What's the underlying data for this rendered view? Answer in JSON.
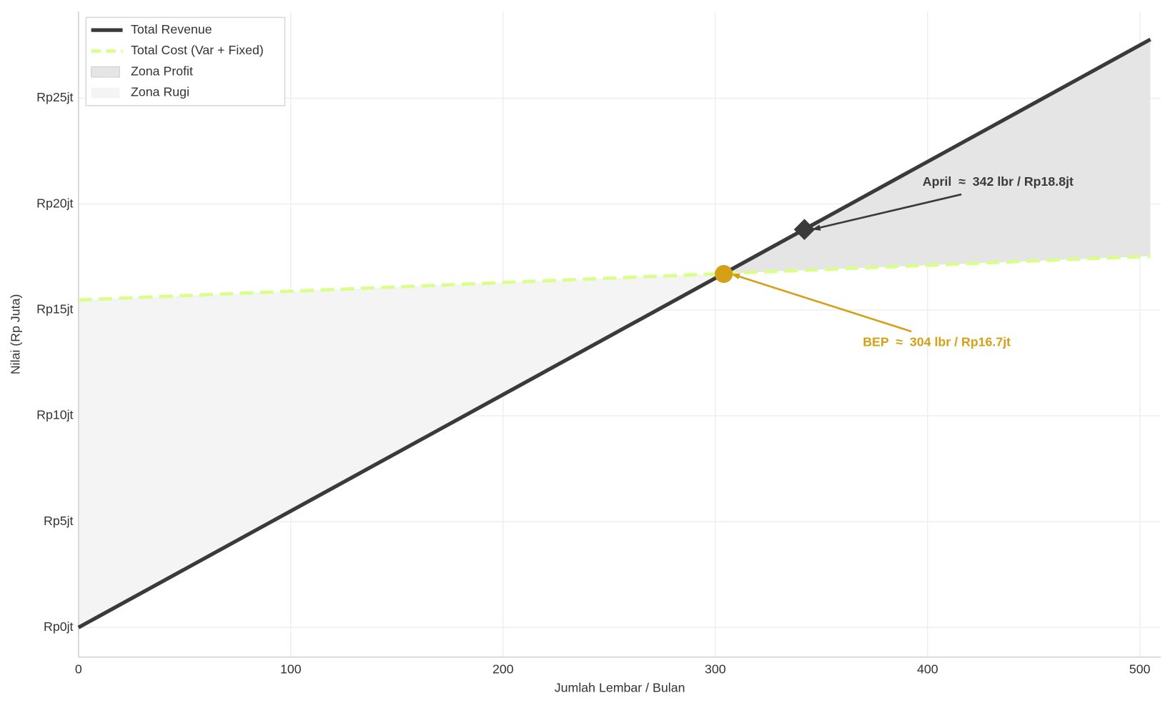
{
  "chart_data": {
    "type": "line",
    "xlabel": "Jumlah Lembar / Bulan",
    "ylabel": "Nilai (Rp Juta)",
    "x": [
      0,
      304,
      505
    ],
    "series": [
      {
        "name": "Total Revenue",
        "color": "#3a3a3a",
        "values": [
          0,
          16.72,
          27.78
        ]
      },
      {
        "name": "Total Cost (Var + Fixed)",
        "color": "#d9ff8a",
        "dashed": true,
        "values": [
          15.47,
          16.72,
          17.54
        ]
      }
    ],
    "zones": [
      {
        "name": "Zona Profit",
        "color": "#e5e5e5"
      },
      {
        "name": "Zona Rugi",
        "color": "#f4f4f4"
      }
    ],
    "annotations": [
      {
        "text": "April  ≈  342 lbr / Rp18.8jt",
        "x": 342,
        "y": 18.8,
        "color": "#3a3a3a",
        "marker": "diamond"
      },
      {
        "text": "BEP  ≈  304 lbr / Rp16.7jt",
        "x": 304,
        "y": 16.7,
        "color": "#d4a017",
        "marker": "circle"
      }
    ],
    "xlim": [
      0,
      510
    ],
    "ylim": [
      -1.4,
      29.1
    ],
    "xticks": [
      0,
      100,
      200,
      300,
      400,
      500
    ],
    "yticks": [
      {
        "value": 0,
        "label": "Rp0jt"
      },
      {
        "value": 5,
        "label": "Rp5jt"
      },
      {
        "value": 10,
        "label": "Rp10jt"
      },
      {
        "value": 15,
        "label": "Rp15jt"
      },
      {
        "value": 20,
        "label": "Rp20jt"
      },
      {
        "value": 25,
        "label": "Rp25jt"
      }
    ],
    "grid": true,
    "legend": "upper left"
  }
}
